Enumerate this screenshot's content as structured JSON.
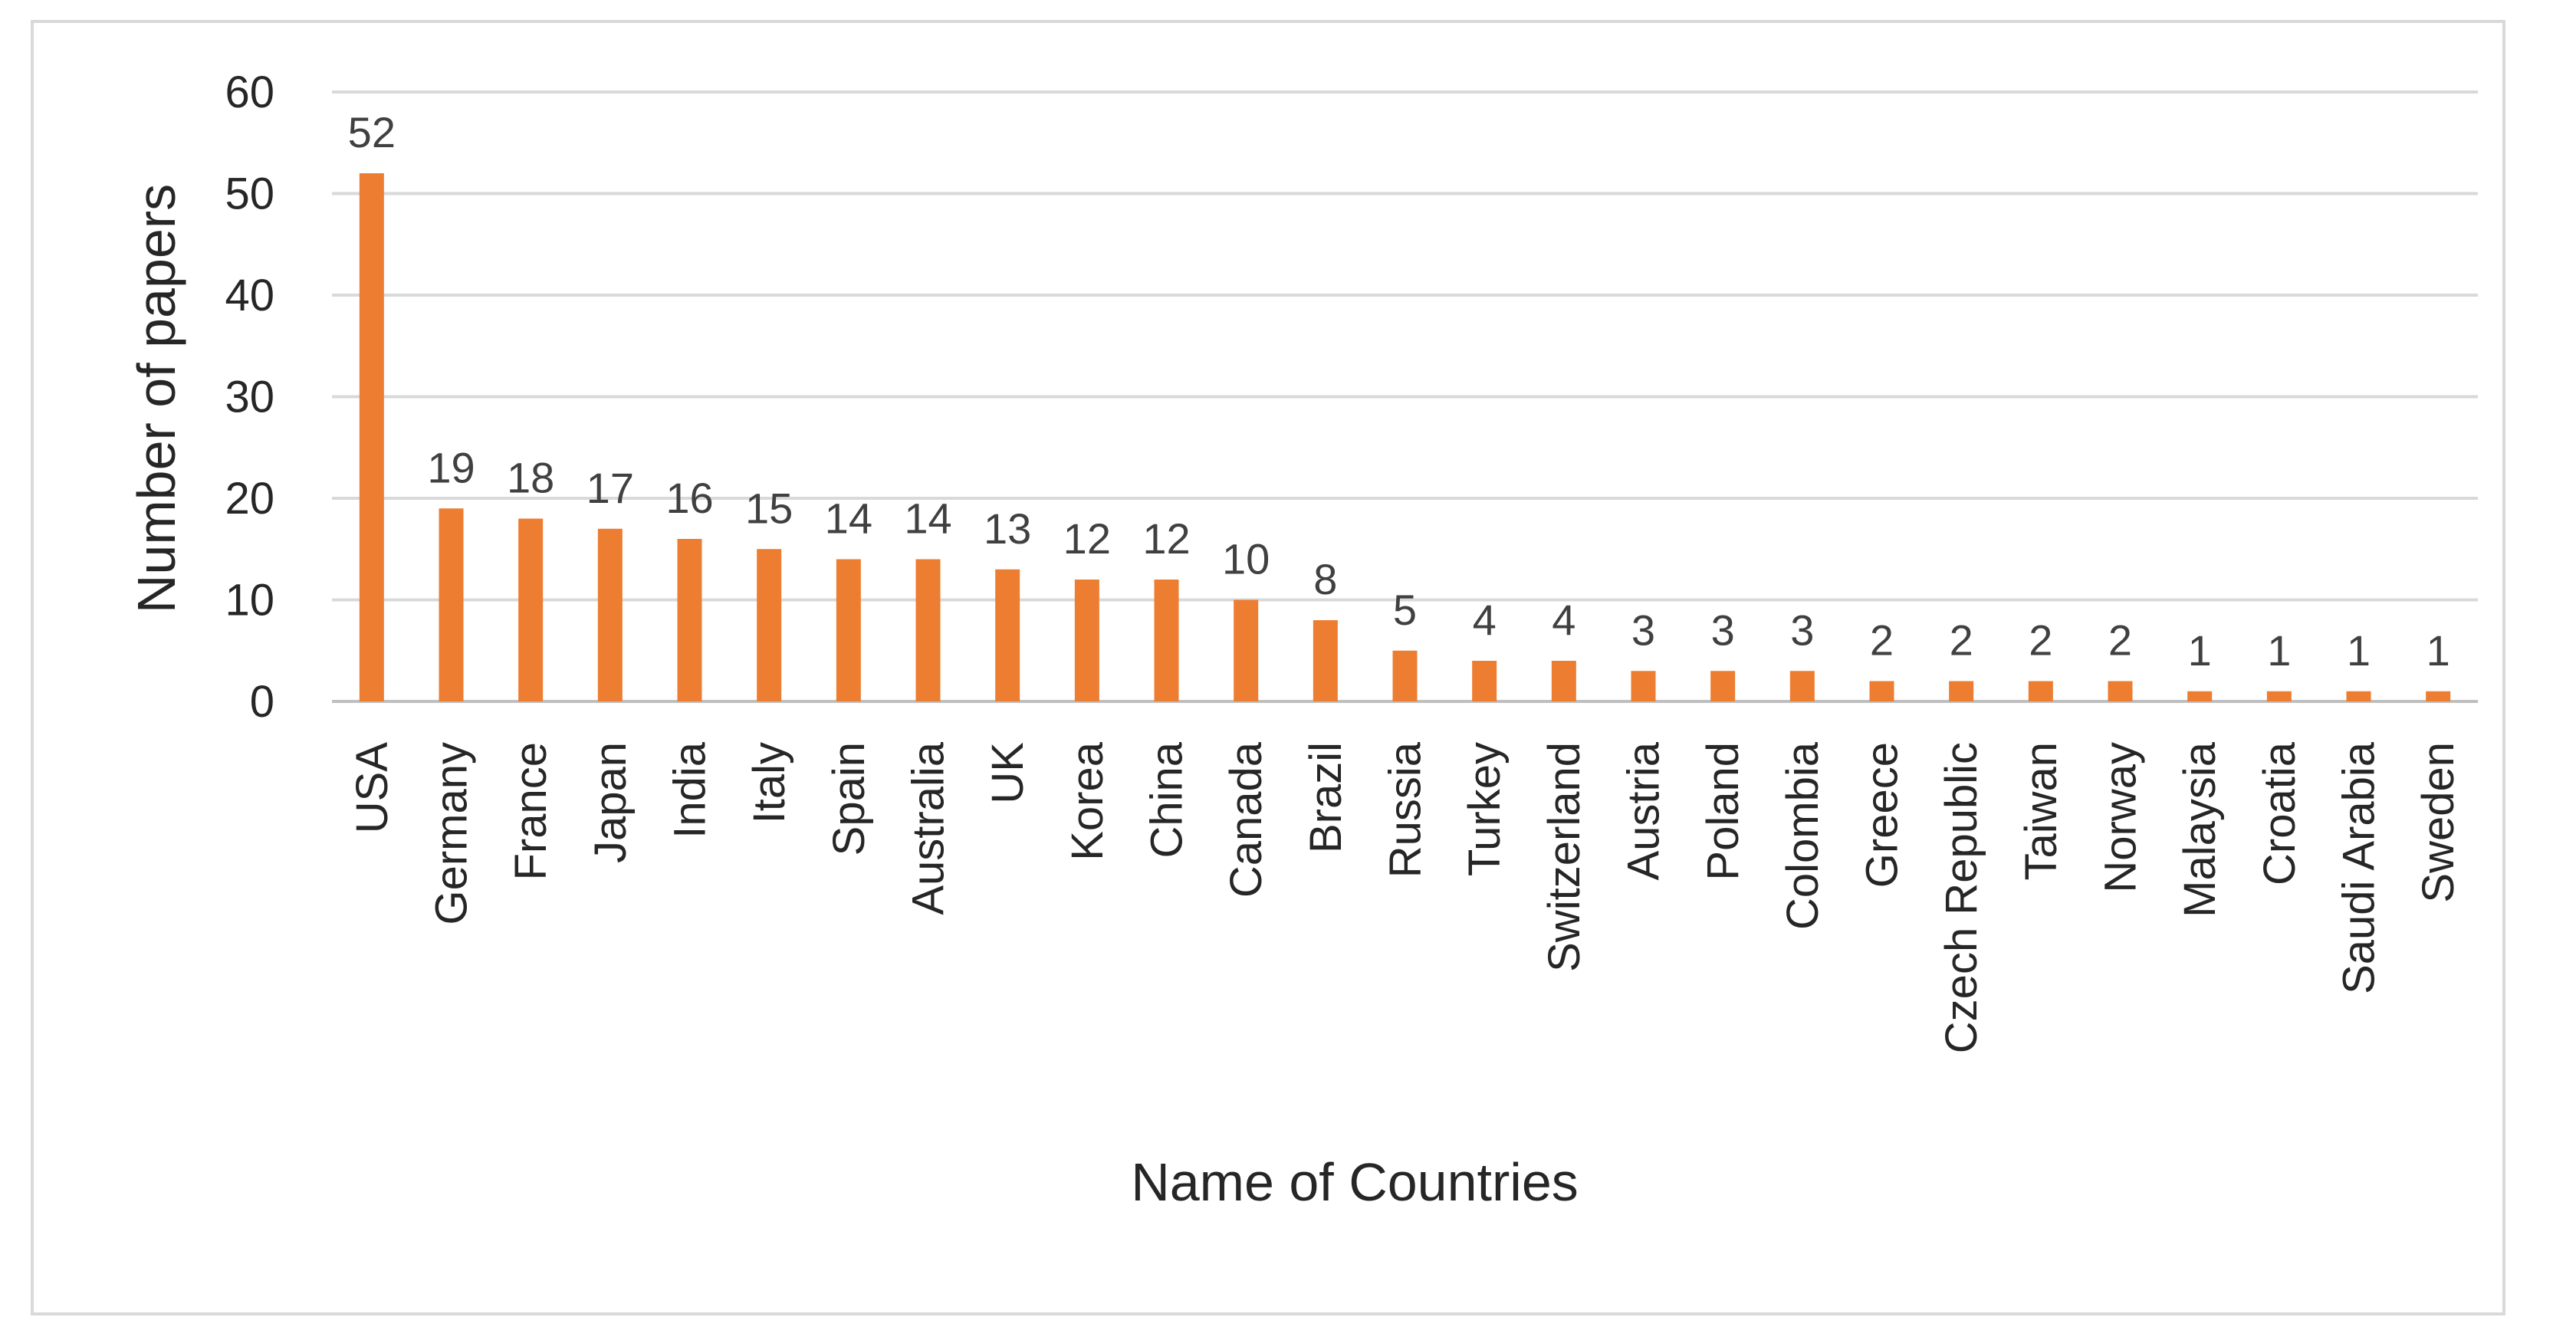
{
  "chart_data": {
    "type": "bar",
    "title": "",
    "xlabel": "Name of Countries",
    "ylabel": "Number of papers",
    "ylim": [
      0,
      60
    ],
    "yticks": [
      0,
      10,
      20,
      30,
      40,
      50,
      60
    ],
    "grid": true,
    "legend": "none",
    "bar_color": "#ed7d31",
    "categories": [
      "USA",
      "Germany",
      "France",
      "Japan",
      "India",
      "Italy",
      "Spain",
      "Australia",
      "UK",
      "Korea",
      "China",
      "Canada",
      "Brazil",
      "Russia",
      "Turkey",
      "Switzerland",
      "Austria",
      "Poland",
      "Colombia",
      "Greece",
      "Czech Republic",
      "Taiwan",
      "Norway",
      "Malaysia",
      "Croatia",
      "Saudi Arabia",
      "Sweden"
    ],
    "values": [
      52,
      19,
      18,
      17,
      16,
      15,
      14,
      14,
      13,
      12,
      12,
      10,
      8,
      5,
      4,
      4,
      3,
      3,
      3,
      2,
      2,
      2,
      2,
      1,
      1,
      1,
      1
    ]
  }
}
